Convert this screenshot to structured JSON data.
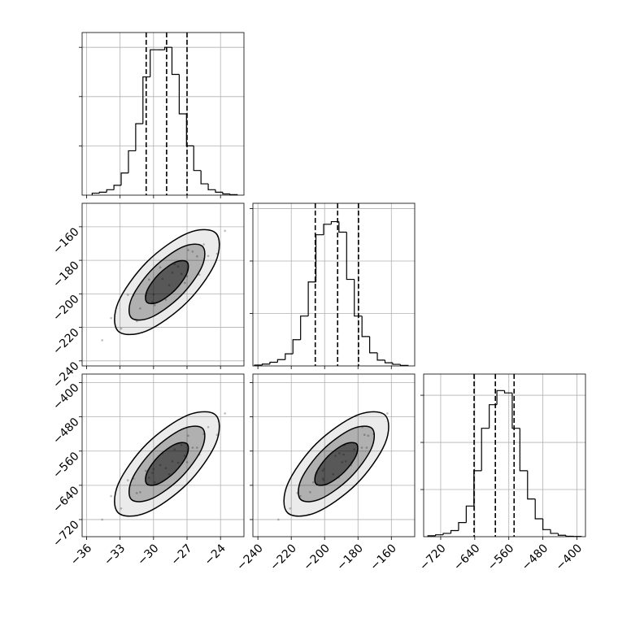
{
  "chart_data": {
    "type": "corner",
    "parameters": [
      {
        "lim": [
          -36.4,
          -21.9
        ],
        "ticks": [
          {
            "value": -36,
            "label": "−36"
          },
          {
            "value": -33,
            "label": "−33"
          },
          {
            "value": -30,
            "label": "−30"
          },
          {
            "value": -27,
            "label": "−27"
          },
          {
            "value": -24,
            "label": "−24"
          }
        ],
        "samples": [
          -28.3,
          -30.1,
          -26.5,
          -31.8,
          -27.2,
          -29.4,
          -25.1,
          -32.9,
          -28.9,
          -27.8,
          -30.7,
          -24.3,
          -33.8,
          -29.9,
          -26.9,
          -31.2,
          -28.1,
          -25.9,
          -30.4,
          -27.5,
          -34.6,
          -23.6,
          -29.2,
          -26.1,
          -31.5,
          -28.6,
          -32.3,
          -25.5,
          -30.0,
          -27.0
        ],
        "hist": {
          "bins": [
            -35.5,
            -34.85,
            -34.2,
            -33.55,
            -32.9,
            -32.25,
            -31.6,
            -30.95,
            -30.3,
            -29.65,
            -29.0,
            -28.35,
            -27.7,
            -27.05,
            -26.4,
            -25.75,
            -25.1,
            -24.45,
            -23.8,
            -23.15,
            -22.5
          ],
          "counts": [
            40,
            60,
            110,
            200,
            450,
            900,
            1450,
            2400,
            2950,
            2950,
            3000,
            2450,
            1650,
            1000,
            500,
            230,
            110,
            60,
            25,
            10
          ],
          "quantiles": [
            -30.66,
            -28.83,
            -27.0
          ],
          "ylim": [
            0,
            3300
          ],
          "yticks": [
            1000,
            2000,
            3000
          ]
        }
      },
      {
        "lim": [
          -243,
          -146
        ],
        "ticks": [
          {
            "value": -240,
            "label": "−240"
          },
          {
            "value": -220,
            "label": "−220"
          },
          {
            "value": -200,
            "label": "−200"
          },
          {
            "value": -180,
            "label": "−180"
          },
          {
            "value": -160,
            "label": "−160"
          }
        ],
        "samples": [
          -187.4,
          -204.9,
          -174.8,
          -200.9,
          -193.5,
          -184.2,
          -177.4,
          -220.7,
          -203.5,
          -183.7,
          -201.1,
          -176.1,
          -214.5,
          -206.8,
          -173.9,
          -208.7,
          -182.3,
          -188.6,
          -191.5,
          -188.1,
          -227.7,
          -162.4,
          -191.1,
          -177.7,
          -216.3,
          -194.9,
          -200.6,
          -170.5,
          -200.4,
          -189.5
        ],
        "hist": {
          "bins": [
            -242,
            -237.4,
            -232.8,
            -228.2,
            -223.6,
            -219,
            -214.4,
            -209.8,
            -205.2,
            -200.6,
            -196,
            -191.4,
            -186.8,
            -182.2,
            -177.6,
            -173,
            -168.4,
            -163.8,
            -159.2,
            -154.6,
            -150
          ],
          "counts": [
            15,
            35,
            70,
            120,
            230,
            500,
            950,
            1600,
            2500,
            2700,
            2750,
            2550,
            1650,
            950,
            560,
            250,
            110,
            60,
            30,
            10
          ],
          "quantiles": [
            -205.6,
            -192.2,
            -179.7
          ],
          "ylim": [
            0,
            3100
          ],
          "yticks": [
            1000,
            2000,
            3000
          ]
        }
      },
      {
        "lim": [
          -760,
          -380
        ],
        "ticks": [
          {
            "value": -720,
            "label": "−720"
          },
          {
            "value": -640,
            "label": "−640"
          },
          {
            "value": -560,
            "label": "−560"
          },
          {
            "value": -480,
            "label": "−480"
          },
          {
            "value": -400,
            "label": "−400"
          }
        ],
        "samples": [
          -584,
          -611,
          -552,
          -624,
          -571,
          -593,
          -504,
          -694,
          -600,
          -587,
          -606,
          -522,
          -665,
          -633,
          -524,
          -656,
          -556,
          -568,
          -622,
          -546,
          -720,
          -472,
          -565,
          -552,
          -658,
          -614,
          -628,
          -520,
          -602,
          -586
        ],
        "hist": {
          "bins": [
            -750,
            -732,
            -714,
            -696,
            -678,
            -660,
            -642,
            -624,
            -606,
            -588,
            -570,
            -552,
            -534,
            -516,
            -498,
            -480,
            -462,
            -444,
            -426,
            -408,
            -390
          ],
          "counts": [
            20,
            40,
            70,
            130,
            300,
            650,
            1400,
            2300,
            2800,
            3100,
            3050,
            2300,
            1400,
            800,
            380,
            150,
            70,
            30,
            10,
            5
          ],
          "quantiles": [
            -641.5,
            -591.6,
            -547.6
          ],
          "ylim": [
            0,
            3450
          ],
          "yticks": [
            1000,
            2000,
            3000
          ]
        }
      }
    ],
    "contours": [
      [
        {
          "x": [
            -24.42,
            -24.43,
            -27.0,
            -30.62,
            -33.18,
            -33.17,
            -30.6,
            -26.98
          ],
          "y": [
            -163.8,
            -180.9,
            -205.0,
            -222.1,
            -222.2,
            -205.1,
            -181.0,
            -163.9
          ]
        },
        {
          "x": [
            -25.61,
            -25.67,
            -27.56,
            -30.18,
            -31.99,
            -31.93,
            -30.04,
            -27.42
          ],
          "y": [
            -171.7,
            -183.8,
            -201.2,
            -213.9,
            -214.3,
            -202.2,
            -184.8,
            -172.1
          ]
        },
        {
          "x": [
            -27.0,
            -27.02,
            -28.08,
            -29.56,
            -30.6,
            -30.58,
            -29.52,
            -28.04
          ],
          "y": [
            -181.0,
            -187.9,
            -197.8,
            -204.9,
            -205.0,
            -198.1,
            -188.2,
            -181.1
          ]
        }
      ],
      [
        {
          "x": [
            -24.42,
            -24.43,
            -27.0,
            -30.62,
            -33.18,
            -33.17,
            -30.6,
            -26.98
          ],
          "y": [
            -476.2,
            -542.6,
            -636.9,
            -703.5,
            -703.8,
            -637.4,
            -543.1,
            -476.5
          ]
        },
        {
          "x": [
            -25.61,
            -25.67,
            -27.56,
            -30.18,
            -31.99,
            -31.93,
            -30.04,
            -27.42
          ],
          "y": [
            -507.0,
            -554.1,
            -622.1,
            -671.4,
            -673.0,
            -625.9,
            -557.9,
            -508.6
          ]
        },
        {
          "x": [
            -27.0,
            -27.02,
            -28.08,
            -29.56,
            -30.6,
            -30.58,
            -29.52,
            -28.04
          ],
          "y": [
            -543.1,
            -570.2,
            -608.7,
            -636.3,
            -636.9,
            -609.8,
            -571.3,
            -543.7
          ]
        }
      ],
      [
        {
          "x": [
            -163.7,
            -163.8,
            -180.9,
            -205.2,
            -222.3,
            -222.2,
            -205.1,
            -180.8
          ],
          "y": [
            -476.2,
            -542.6,
            -636.9,
            -703.5,
            -703.8,
            -637.4,
            -543.1,
            -476.5
          ]
        },
        {
          "x": [
            -171.6,
            -172.0,
            -184.7,
            -202.2,
            -214.4,
            -214.0,
            -201.3,
            -183.8
          ],
          "y": [
            -507.0,
            -554.1,
            -622.1,
            -671.4,
            -673.0,
            -625.9,
            -557.9,
            -508.6
          ]
        },
        {
          "x": [
            -180.9,
            -181.1,
            -188.2,
            -198.1,
            -205.1,
            -204.9,
            -197.8,
            -187.9
          ],
          "y": [
            -543.1,
            -570.2,
            -608.7,
            -636.3,
            -636.9,
            -609.8,
            -571.3,
            -543.7
          ]
        }
      ]
    ],
    "grid": true
  }
}
